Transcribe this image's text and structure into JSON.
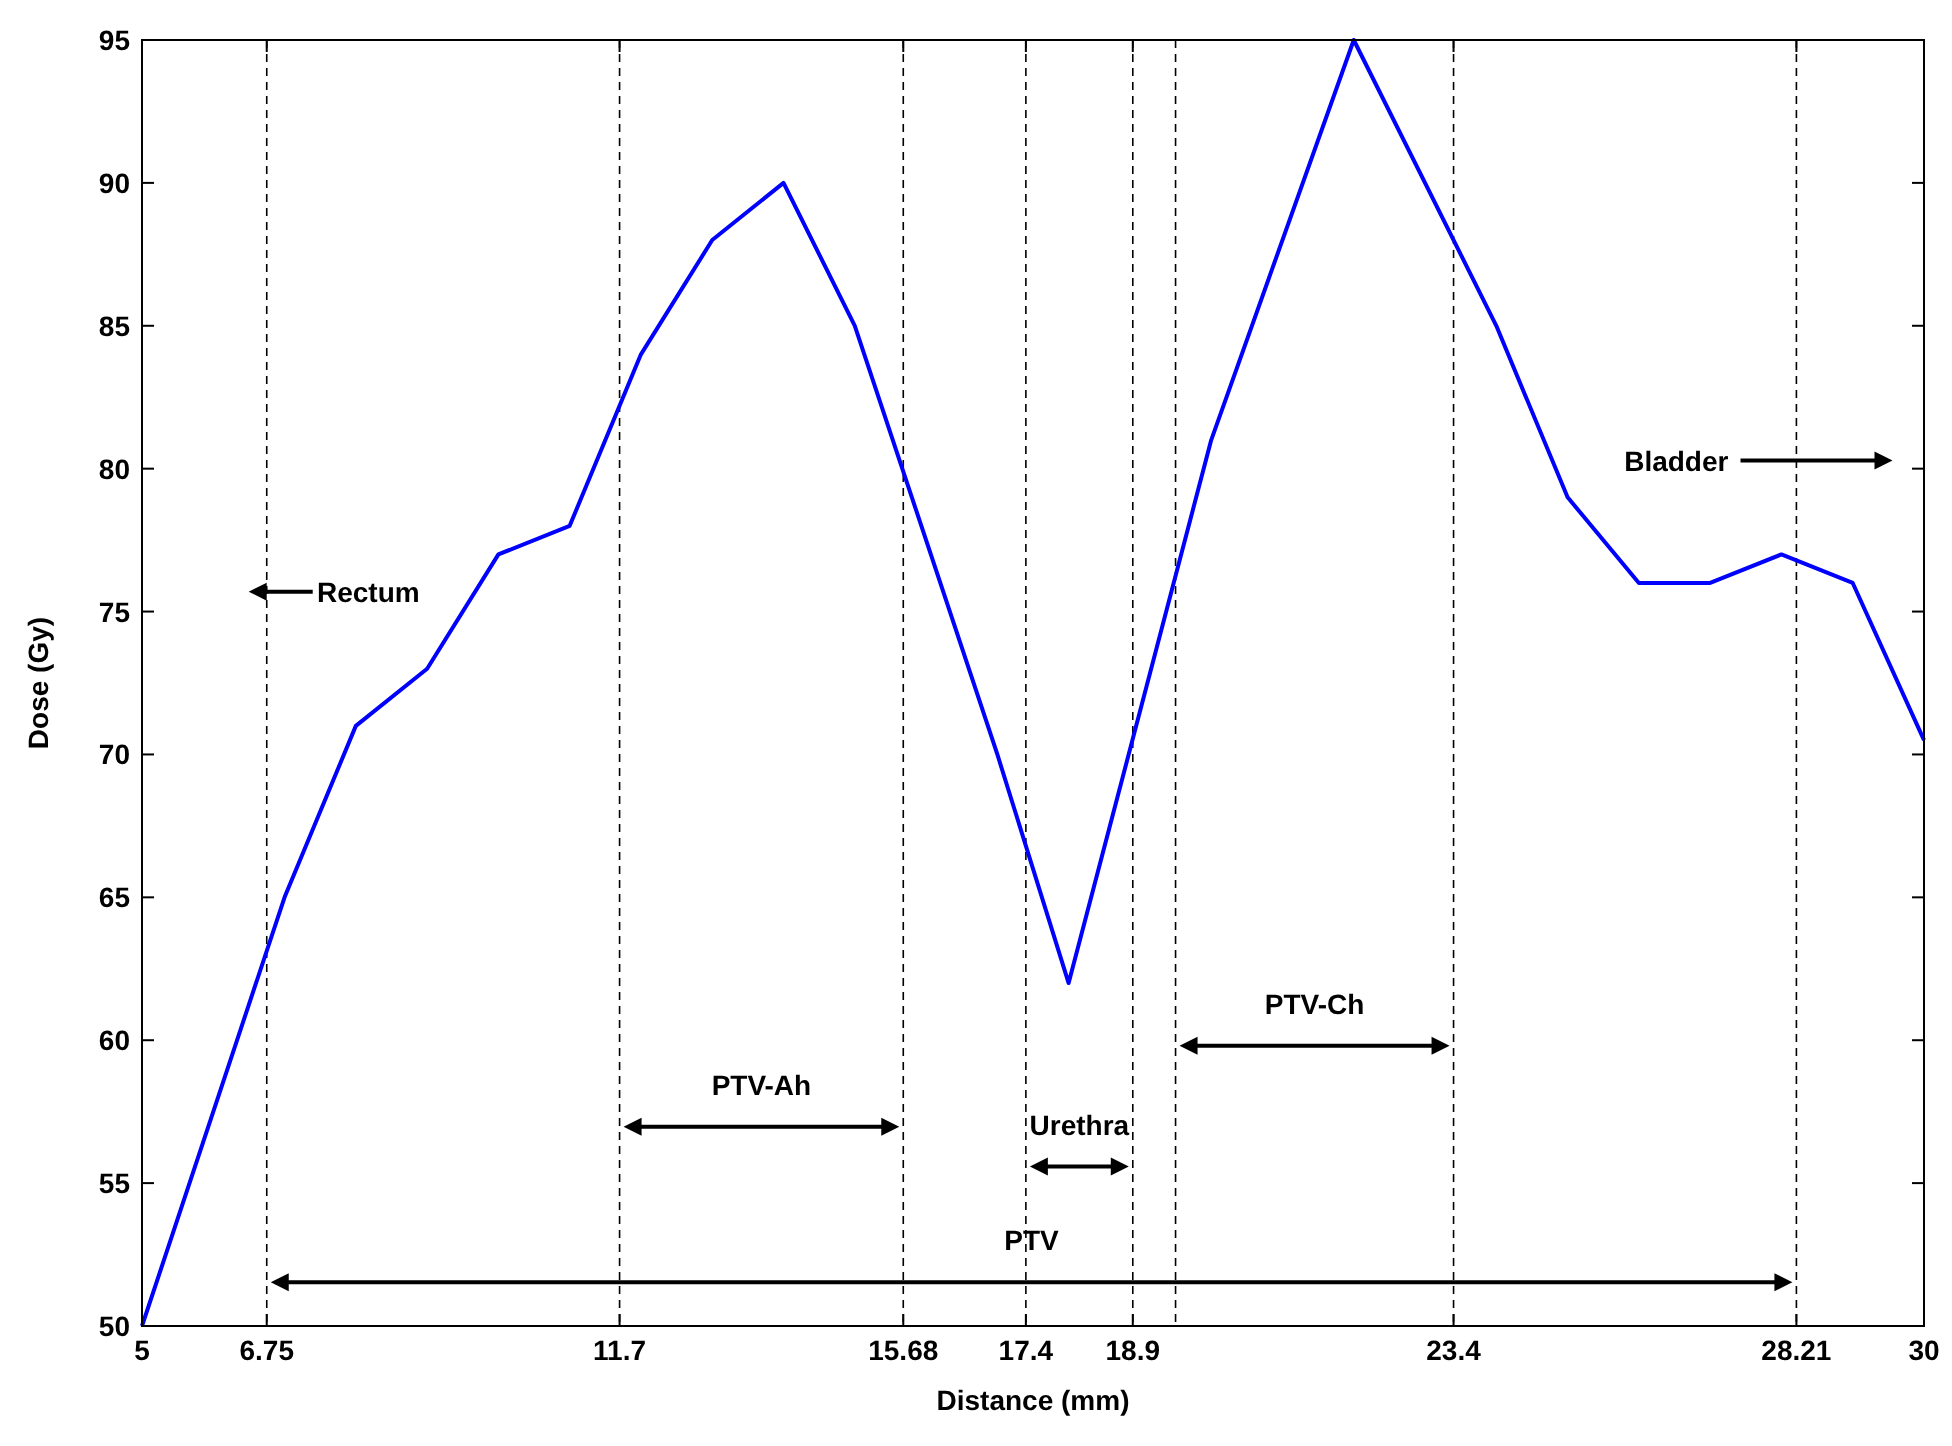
{
  "chart_data": {
    "type": "line",
    "xlabel": "Distance (mm)",
    "ylabel": "Dose (Gy)",
    "xlim": [
      5,
      30
    ],
    "ylim": [
      50,
      95
    ],
    "xticks": [
      5,
      6.75,
      11.7,
      15.68,
      17.4,
      18.9,
      23.4,
      28.21,
      30
    ],
    "yticks": [
      50,
      55,
      60,
      65,
      70,
      75,
      80,
      85,
      90,
      95
    ],
    "grid": false,
    "marker": "none",
    "line_style": "solid",
    "series": [
      {
        "color": "#0000ff",
        "x": [
          5,
          7,
          8,
          9,
          10,
          11,
          12,
          13,
          14,
          15,
          17,
          18,
          20,
          22,
          24,
          25,
          26,
          27,
          28,
          29,
          30
        ],
        "values": [
          50,
          65,
          71,
          73,
          77,
          78,
          84,
          88,
          90,
          85,
          70,
          62,
          81,
          95,
          85,
          79,
          76,
          76,
          77,
          76,
          70.5
        ]
      }
    ],
    "ref_lines": [
      {
        "axis": "x",
        "value": 6.75,
        "label": null,
        "line_style": "dashed"
      },
      {
        "axis": "x",
        "value": 11.7,
        "label": null,
        "line_style": "dashed"
      },
      {
        "axis": "x",
        "value": 15.68,
        "label": null,
        "line_style": "dashed"
      },
      {
        "axis": "x",
        "value": 17.4,
        "label": null,
        "line_style": "dashed"
      },
      {
        "axis": "x",
        "value": 18.9,
        "label": null,
        "line_style": "dashed"
      },
      {
        "axis": "x",
        "value": 19.5,
        "label": null,
        "line_style": "dashed"
      },
      {
        "axis": "x",
        "value": 23.4,
        "label": null,
        "line_style": "dashed"
      },
      {
        "axis": "x",
        "value": 28.21,
        "label": null,
        "line_style": "dashed"
      }
    ],
    "annotations": [
      "Rectum",
      "Bladder",
      "PTV-Ah",
      "Urethra",
      "PTV-Ch",
      "PTV"
    ]
  }
}
